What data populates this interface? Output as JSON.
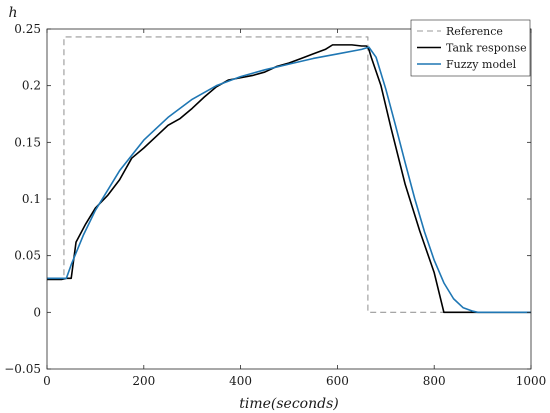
{
  "chart_data": {
    "type": "line",
    "title": "",
    "xlabel": "time(seconds)",
    "ylabel": "h",
    "xlim": [
      0,
      1000
    ],
    "ylim": [
      -0.05,
      0.25
    ],
    "xticks": [
      0,
      200,
      400,
      600,
      800,
      1000
    ],
    "yticks": [
      -0.05,
      0,
      0.05,
      0.1,
      0.15,
      0.2,
      0.25
    ],
    "xtick_labels": [
      "0",
      "200",
      "400",
      "600",
      "800",
      "1000"
    ],
    "ytick_labels": [
      "−0.05",
      "0",
      "0.05",
      "0.1",
      "0.15",
      "0.2",
      "0.25"
    ],
    "grid": false,
    "legend_position": "top-right",
    "series": [
      {
        "name": "Reference",
        "color": "#999999",
        "style": "dashed",
        "x": [
          0,
          35,
          35,
          663,
          663,
          1000
        ],
        "y": [
          0.03,
          0.03,
          0.243,
          0.243,
          0,
          0
        ]
      },
      {
        "name": "Tank response",
        "color": "#000000",
        "style": "solid",
        "x": [
          0,
          30,
          40,
          50,
          60,
          80,
          100,
          125,
          150,
          175,
          200,
          225,
          250,
          275,
          300,
          325,
          350,
          375,
          400,
          425,
          450,
          475,
          500,
          525,
          550,
          575,
          590,
          610,
          630,
          650,
          660,
          665,
          670,
          690,
          710,
          740,
          770,
          800,
          820,
          860,
          900,
          1000
        ],
        "y": [
          0.029,
          0.029,
          0.03,
          0.03,
          0.062,
          0.078,
          0.092,
          0.103,
          0.117,
          0.136,
          0.145,
          0.155,
          0.165,
          0.171,
          0.18,
          0.19,
          0.199,
          0.205,
          0.207,
          0.209,
          0.212,
          0.217,
          0.22,
          0.224,
          0.228,
          0.232,
          0.236,
          0.236,
          0.236,
          0.235,
          0.235,
          0.232,
          0.225,
          0.2,
          0.164,
          0.113,
          0.072,
          0.035,
          0.0,
          0.0,
          0.0,
          0.0
        ]
      },
      {
        "name": "Fuzzy model",
        "color": "#1f77b4",
        "style": "solid",
        "x": [
          0,
          40,
          50,
          75,
          100,
          150,
          200,
          250,
          300,
          350,
          400,
          450,
          500,
          550,
          600,
          650,
          665,
          680,
          700,
          720,
          740,
          760,
          780,
          800,
          820,
          840,
          860,
          880,
          890,
          900,
          1000
        ],
        "y": [
          0.03,
          0.03,
          0.042,
          0.068,
          0.09,
          0.125,
          0.152,
          0.172,
          0.188,
          0.2,
          0.208,
          0.214,
          0.219,
          0.224,
          0.228,
          0.232,
          0.234,
          0.225,
          0.197,
          0.165,
          0.132,
          0.1,
          0.071,
          0.046,
          0.026,
          0.012,
          0.004,
          0.001,
          0.0,
          0.0,
          0.0
        ]
      }
    ]
  }
}
